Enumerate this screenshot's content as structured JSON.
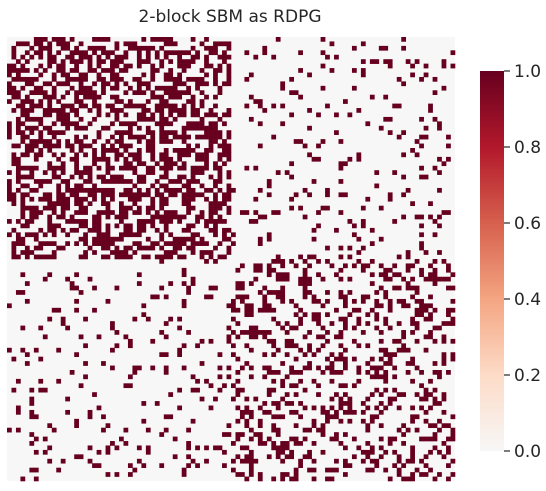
{
  "chart_data": {
    "type": "heatmap",
    "title": "2-block SBM as RDPG",
    "n_nodes": 100,
    "blocks": [
      {
        "name": "",
        "nodes": 50
      },
      {
        "name": "",
        "nodes": 50
      }
    ],
    "block_probabilities": [
      [
        0.5,
        0.1
      ],
      [
        0.1,
        0.3
      ]
    ],
    "value_range": [
      0,
      1
    ],
    "colormap": {
      "name": "RdBu_r (upper half)",
      "stops": [
        {
          "value": 0.0,
          "color": "#f7f7f7"
        },
        {
          "value": 0.2,
          "color": "#fddbc7"
        },
        {
          "value": 0.4,
          "color": "#f4a582"
        },
        {
          "value": 0.6,
          "color": "#d6604d"
        },
        {
          "value": 0.8,
          "color": "#b2182b"
        },
        {
          "value": 1.0,
          "color": "#67001f"
        }
      ]
    },
    "colorbar_ticks": [
      "0.0",
      "0.2",
      "0.4",
      "0.6",
      "0.8",
      "1.0"
    ],
    "xticklabels": false,
    "yticklabels": false,
    "grid": false
  }
}
